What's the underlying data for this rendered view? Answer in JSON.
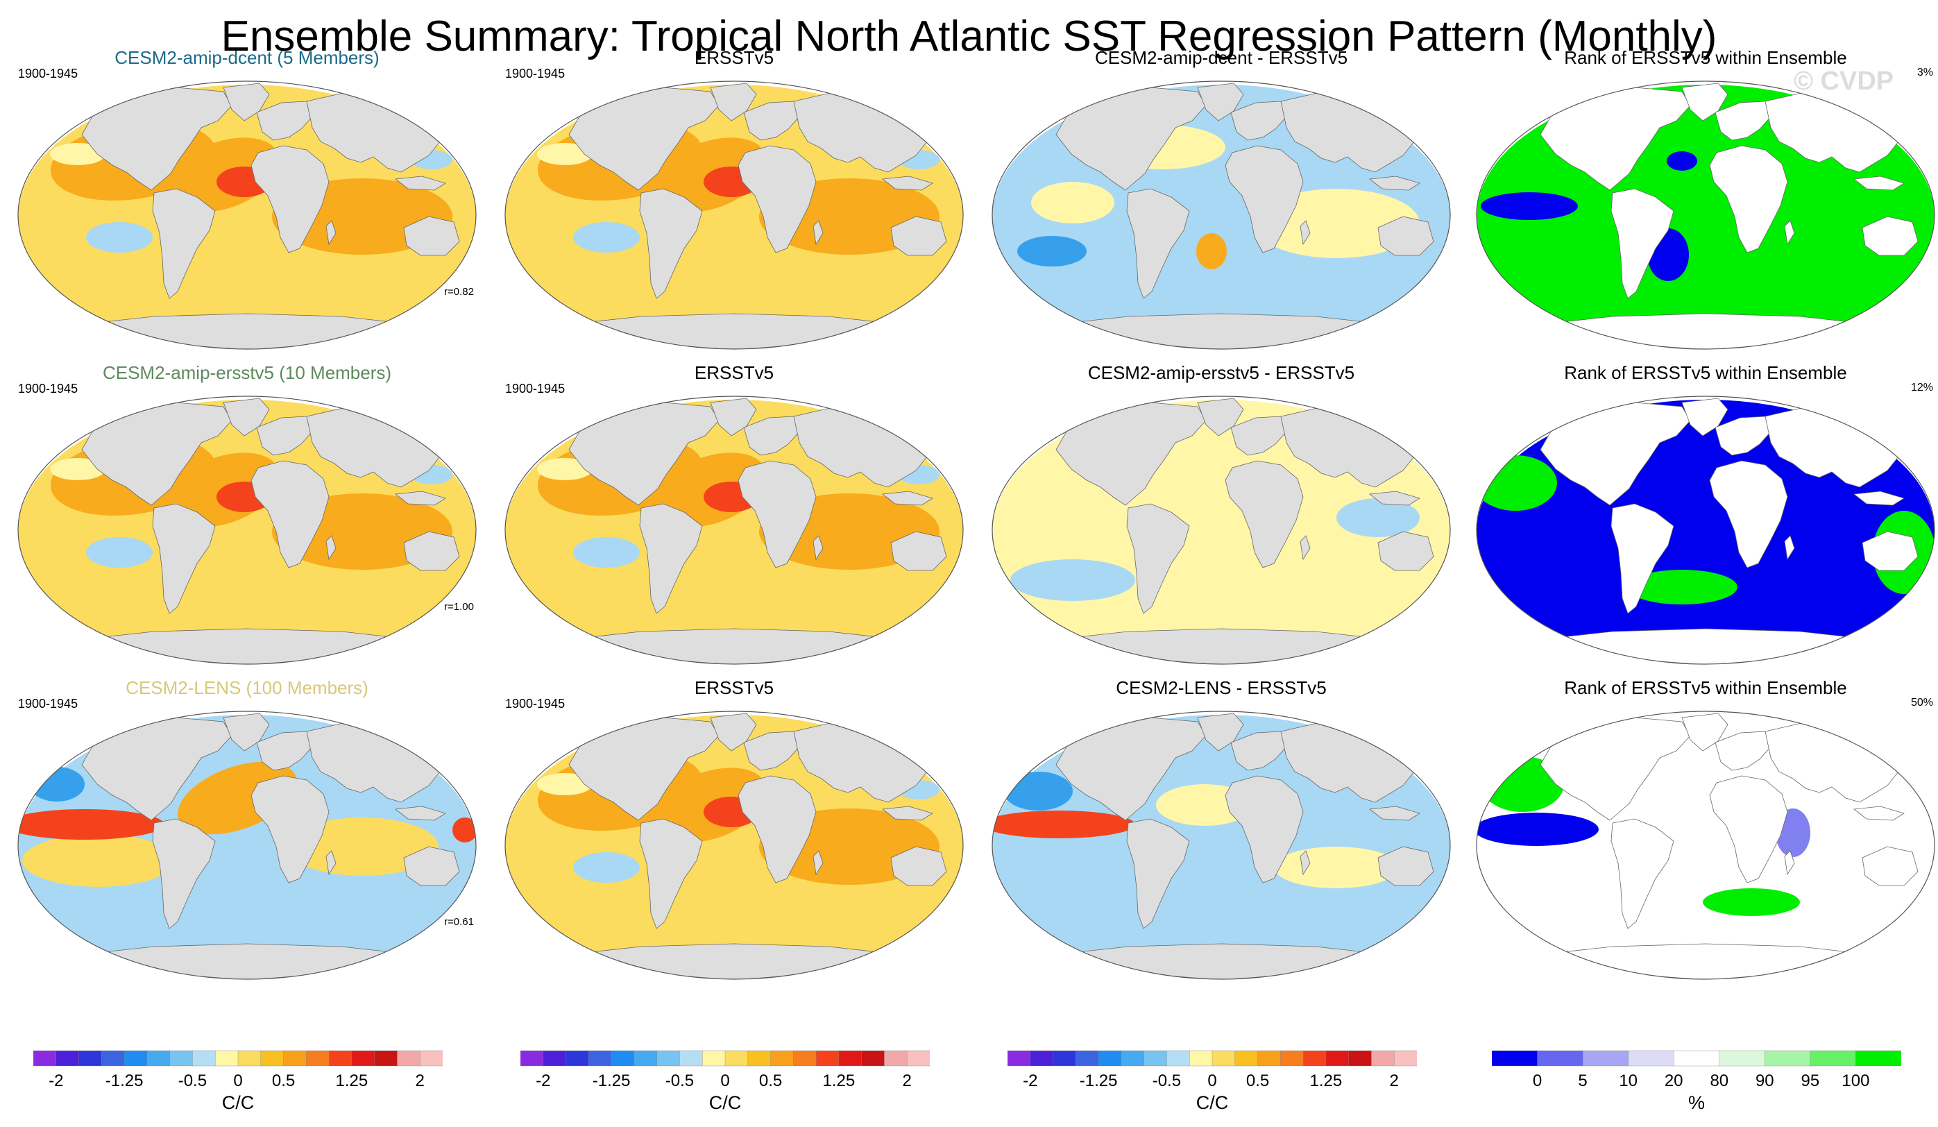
{
  "title": "Ensemble Summary: Tropical North Atlantic SST Regression Pattern (Monthly)",
  "watermark": "© CVDP",
  "colors": {
    "ocean_warm": "#fbdc5e",
    "ocean_pale": "#fff6a8",
    "ocean_orange": "#f8ab1c",
    "ocean_red": "#f4431c",
    "ocean_cold": "#a8d8f4",
    "ocean_blue": "#36a0ec",
    "land": "#dedede",
    "rank_low": "#0000ee",
    "rank_high": "#00ee00",
    "title_dcent": "#1a6a8a",
    "title_ersst": "#5d8a5d",
    "title_lens": "#d8c878"
  },
  "chart_data": {
    "type": "heatmap",
    "rows": [
      {
        "model_title": "CESM2-amip-dcent (5 Members)",
        "model_title_color": "#1a6a8a",
        "period": "1900-1945",
        "pattern_corr": "r=0.82",
        "obs_title": "ERSSTv5",
        "obs_period": "1900-1945",
        "diff_title": "CESM2-amip-dcent - ERSSTv5",
        "rank_title": "Rank of ERSSTv5 within Ensemble",
        "rank_pct": "3%",
        "regimes": {
          "model": "warm",
          "obs": "warm",
          "diff": "mixed",
          "rank": "rank-high"
        }
      },
      {
        "model_title": "CESM2-amip-ersstv5 (10 Members)",
        "model_title_color": "#5d8a5d",
        "period": "1900-1945",
        "pattern_corr": "r=1.00",
        "obs_title": "ERSSTv5",
        "obs_period": "1900-1945",
        "diff_title": "CESM2-amip-ersstv5 - ERSSTv5",
        "rank_title": "Rank of ERSSTv5 within Ensemble",
        "rank_pct": "12%",
        "regimes": {
          "model": "warm",
          "obs": "warm",
          "diff": "neutral",
          "rank": "rank-low"
        }
      },
      {
        "model_title": "CESM2-LENS (100 Members)",
        "model_title_color": "#d8c878",
        "period": "1900-1945",
        "pattern_corr": "r=0.61",
        "obs_title": "ERSSTv5",
        "obs_period": "1900-1945",
        "diff_title": "CESM2-LENS - ERSSTv5",
        "rank_title": "Rank of ERSSTv5 within Ensemble",
        "rank_pct": "50%",
        "regimes": {
          "model": "enso",
          "obs": "warm",
          "diff": "enso-diff",
          "rank": "rank-mid"
        }
      }
    ],
    "sst_colorbar": {
      "unit": "C/C",
      "tick_labels": [
        "-2",
        "-1.25",
        "-0.5",
        "0",
        "0.5",
        "1.25",
        "2"
      ],
      "levels": [
        -2,
        -1.75,
        -1.5,
        -1.25,
        -1,
        -0.75,
        -0.5,
        -0.25,
        0,
        0.25,
        0.5,
        0.75,
        1,
        1.25,
        1.5,
        1.75,
        2
      ],
      "colors": [
        "#8a2be2",
        "#4b20d8",
        "#2d36d8",
        "#3c64e0",
        "#1e8cf0",
        "#46aaf0",
        "#78c3f0",
        "#b4def5",
        "#fff7a6",
        "#fbdc5e",
        "#f8c020",
        "#f8a01c",
        "#f77e1e",
        "#f4431c",
        "#e01818",
        "#c81414",
        "#f0a8a8",
        "#f9c0c0"
      ]
    },
    "rank_colorbar": {
      "unit": "%",
      "tick_labels": [
        "0",
        "5",
        "10",
        "20",
        "80",
        "90",
        "95",
        "100"
      ],
      "levels": [
        0,
        5,
        10,
        20,
        80,
        90,
        95,
        100
      ],
      "colors": [
        "#0000ee",
        "#6666f0",
        "#a6a6f5",
        "#dcdcf8",
        "#ffffff",
        "#dcf8dc",
        "#a6f5a6",
        "#66f066",
        "#00ee00"
      ]
    },
    "projection": "Robinson-like world maps, 4 columns x 3 rows"
  }
}
